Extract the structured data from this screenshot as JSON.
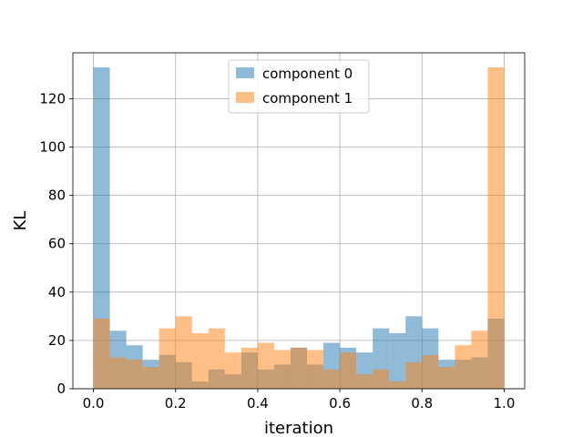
{
  "chart_data": {
    "type": "bar",
    "subtype": "overlapping-histogram",
    "title": "",
    "xlabel": "iteration",
    "ylabel": "KL",
    "xlim": [
      -0.05,
      1.05
    ],
    "ylim": [
      0,
      139
    ],
    "xticks": [
      "0.0",
      "0.2",
      "0.4",
      "0.6",
      "0.8",
      "1.0"
    ],
    "yticks": [
      "0",
      "20",
      "40",
      "60",
      "80",
      "100",
      "120"
    ],
    "grid": true,
    "legend_position": "upper-center",
    "bin_edges": [
      0.0,
      0.04,
      0.08,
      0.12,
      0.16,
      0.2,
      0.24,
      0.28,
      0.32,
      0.36,
      0.4,
      0.44,
      0.48,
      0.52,
      0.56,
      0.6,
      0.64,
      0.68,
      0.72,
      0.76,
      0.8,
      0.84,
      0.88,
      0.92,
      0.96,
      1.0
    ],
    "series": [
      {
        "name": "component 0",
        "color": "#1f77b4",
        "alpha": 0.5,
        "values": [
          133,
          24,
          18,
          12,
          14,
          11,
          3,
          8,
          6,
          15,
          8,
          10,
          17,
          10,
          19,
          17,
          15,
          25,
          23,
          30,
          25,
          12,
          12,
          13,
          29
        ]
      },
      {
        "name": "component 1",
        "color": "#ff7f0e",
        "alpha": 0.5,
        "values": [
          29,
          13,
          12,
          9,
          25,
          30,
          23,
          25,
          15,
          17,
          19,
          16,
          17,
          16,
          8,
          15,
          6,
          8,
          3,
          11,
          14,
          9,
          18,
          24,
          133
        ]
      }
    ]
  }
}
